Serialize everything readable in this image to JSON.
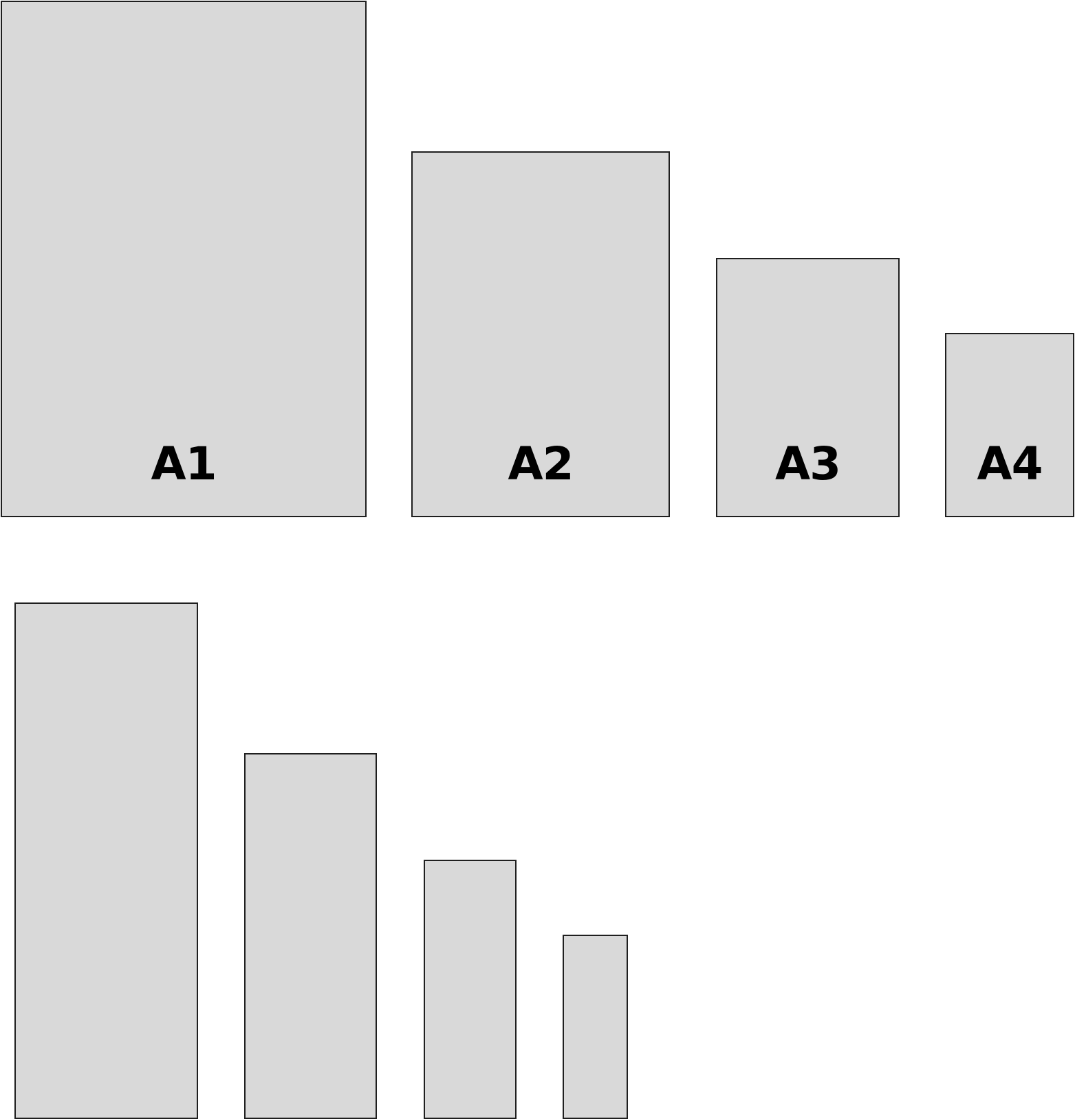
{
  "colors": {
    "sheet_fill": "#d9d9d9",
    "sheet_border": "#1f1f1f",
    "label_text": "#000000",
    "background": "#ffffff"
  },
  "top_row": {
    "sheets": [
      {
        "label": "A1"
      },
      {
        "label": "A2"
      },
      {
        "label": "A3"
      },
      {
        "label": "A4"
      }
    ]
  },
  "bottom_row": {
    "sheet_count": 4
  }
}
